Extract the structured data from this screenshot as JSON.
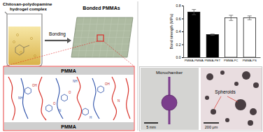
{
  "chart_data": {
    "type": "bar",
    "y_label": "Bond strength (MPa)",
    "categories": [
      "PMMA-PMMA",
      "PMMA-PET",
      "PMMA-PC",
      "PMMA-PS"
    ],
    "values": [
      0.7,
      0.35,
      0.61,
      0.61
    ],
    "errors": [
      0.04,
      0.01,
      0.04,
      0.03
    ],
    "colors": [
      "#000000",
      "#000000",
      "#ffffff",
      "#ffffff"
    ],
    "ylim": [
      0,
      0.8
    ],
    "yticks": [
      {
        "value": 0,
        "label": "0.0"
      },
      0.2,
      0.4,
      0.6,
      0.8
    ]
  },
  "diagram": {
    "beaker_label": [
      "Chitosan-polydopamine",
      "hydrogel complex"
    ],
    "arrow_label": "Bonding",
    "product_label": "Bonded PMMAs",
    "layer_label_top": "PMMA",
    "layer_label_bottom": "PMMA",
    "structure_labels": [
      "OH",
      "NH",
      "O",
      "N",
      "OH",
      "NH",
      "O",
      "H",
      "N"
    ]
  },
  "images": {
    "left": {
      "label": "Microchamber",
      "scale_bar": "5 mm"
    },
    "right": {
      "label": "Spheroids",
      "scale_bar": "200 μm"
    }
  }
}
